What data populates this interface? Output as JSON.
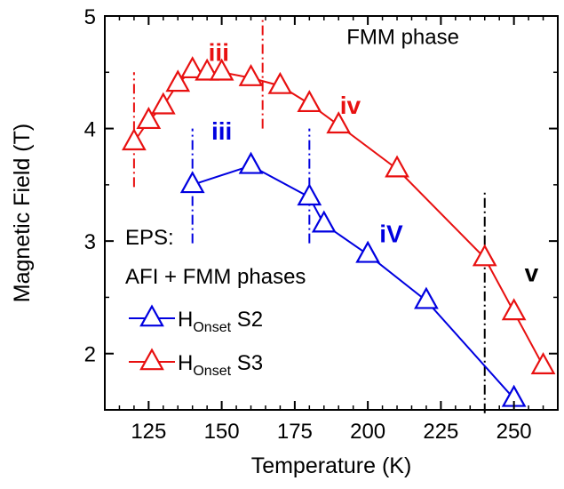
{
  "chart_data": {
    "type": "line",
    "xlabel": "Temperature (K)",
    "ylabel": "Magnetic Field (T)",
    "xlim": [
      110,
      265
    ],
    "ylim": [
      1.5,
      5.0
    ],
    "xticks": [
      125,
      150,
      175,
      200,
      225,
      250
    ],
    "yticks": [
      2,
      3,
      4,
      5
    ],
    "grid": false,
    "legend_position": "bottom-left",
    "series": [
      {
        "name_main": "H",
        "name_sub": "Onset",
        "name_suffix": " S2",
        "color": "#0000e0",
        "marker": "open-triangle",
        "x": [
          140,
          160,
          180,
          185,
          200,
          220,
          250
        ],
        "y": [
          3.5,
          3.67,
          3.39,
          3.15,
          2.88,
          2.47,
          1.6
        ]
      },
      {
        "name_main": "H",
        "name_sub": "Onset",
        "name_suffix": " S3",
        "color": "#e81010",
        "marker": "open-triangle",
        "x": [
          120,
          125,
          130,
          135,
          140,
          145,
          150,
          160,
          170,
          180,
          190,
          210,
          240,
          250,
          260
        ],
        "y": [
          3.88,
          4.07,
          4.2,
          4.4,
          4.52,
          4.5,
          4.5,
          4.45,
          4.38,
          4.22,
          4.03,
          3.64,
          2.85,
          2.37,
          1.89
        ]
      }
    ],
    "vlines": [
      {
        "x": 120,
        "y_from": 3.48,
        "y_to": 4.5,
        "color": "#e81010"
      },
      {
        "x": 164,
        "y_from": 4.0,
        "y_to": 5.0,
        "color": "#e81010"
      },
      {
        "x": 140,
        "y_from": 2.98,
        "y_to": 4.0,
        "color": "#0000e0"
      },
      {
        "x": 180,
        "y_from": 2.98,
        "y_to": 4.0,
        "color": "#0000e0"
      },
      {
        "x": 240,
        "y_from": 1.47,
        "y_to": 3.46,
        "color": "#000000"
      }
    ],
    "annotations": [
      {
        "text": "FMM phase",
        "x": 212,
        "y": 4.75,
        "anchor": "middle",
        "class": "anno",
        "color": "#000000"
      },
      {
        "text": "EPS:",
        "x": 117,
        "y": 2.97,
        "anchor": "start",
        "class": "anno",
        "color": "#000000"
      },
      {
        "text": "AFI + FMM phases",
        "x": 117,
        "y": 2.62,
        "anchor": "start",
        "class": "anno",
        "color": "#000000"
      },
      {
        "text": "iii",
        "x": 149,
        "y": 4.6,
        "anchor": "middle",
        "class": "roman",
        "color": "#e81010"
      },
      {
        "text": "iv",
        "x": 194,
        "y": 4.13,
        "anchor": "middle",
        "class": "roman",
        "color": "#e81010"
      },
      {
        "text": "iii",
        "x": 150,
        "y": 3.9,
        "anchor": "middle",
        "class": "roman",
        "color": "#0000e0"
      },
      {
        "text": "iV",
        "x": 208,
        "y": 2.99,
        "anchor": "middle",
        "class": "roman",
        "color": "#0000e0"
      },
      {
        "text": "v",
        "x": 256,
        "y": 2.64,
        "anchor": "middle",
        "class": "roman",
        "color": "#000000"
      }
    ]
  }
}
